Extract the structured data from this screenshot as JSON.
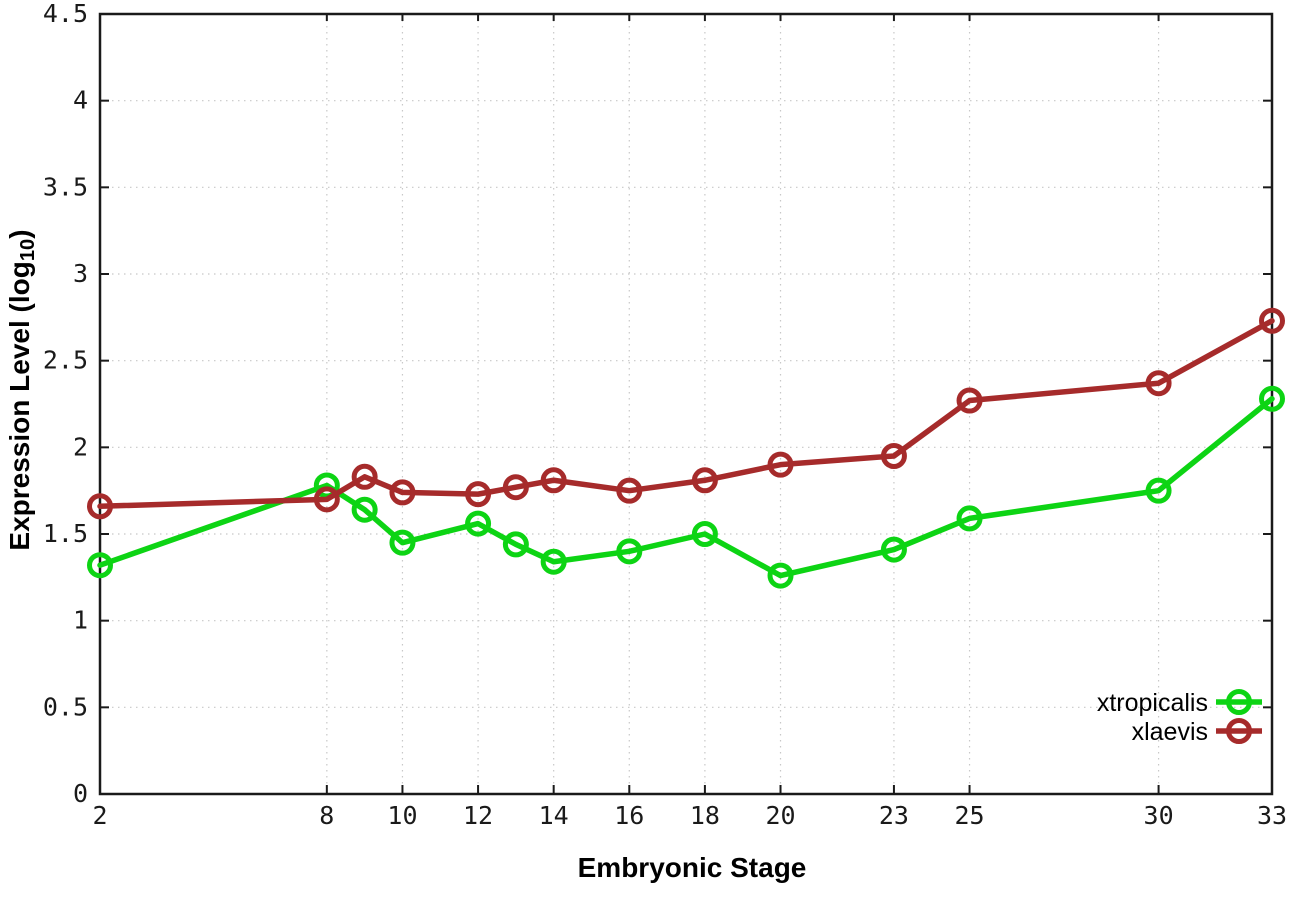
{
  "chart_data": {
    "type": "line",
    "title": "",
    "xlabel": "Embryonic Stage",
    "ylabel": "Expression Level (log10)",
    "ylabel_parts": {
      "main": "Expression Level (log",
      "sub": "10",
      "end": ")"
    },
    "x": [
      2,
      8,
      9,
      10,
      12,
      13,
      14,
      16,
      18,
      20,
      23,
      25,
      30,
      33
    ],
    "x_tick_labels": [
      2,
      8,
      10,
      12,
      14,
      16,
      18,
      20,
      23,
      25,
      30,
      33
    ],
    "y_tick_labels": [
      0,
      0.5,
      1,
      1.5,
      2,
      2.5,
      3,
      3.5,
      4,
      4.5
    ],
    "xlim": [
      2,
      33
    ],
    "ylim": [
      0,
      4.5
    ],
    "grid": true,
    "legend_position": "bottom-right",
    "series": [
      {
        "name": "xtropicalis",
        "color": "#0dd414",
        "marker": "open-circle",
        "values": [
          1.32,
          1.78,
          1.64,
          1.45,
          1.56,
          1.44,
          1.34,
          1.4,
          1.5,
          1.26,
          1.41,
          1.59,
          1.75,
          2.28
        ]
      },
      {
        "name": "xlaevis",
        "color": "#a62b2b",
        "marker": "open-circle",
        "values": [
          1.66,
          1.7,
          1.83,
          1.74,
          1.73,
          1.77,
          1.81,
          1.75,
          1.81,
          1.9,
          1.95,
          2.27,
          2.37,
          2.73
        ]
      }
    ],
    "colors": {
      "axis": "#1a1a1a",
      "grid": "#c8c8c8",
      "tick_text": "#1a1a1a",
      "background": "#ffffff"
    }
  }
}
